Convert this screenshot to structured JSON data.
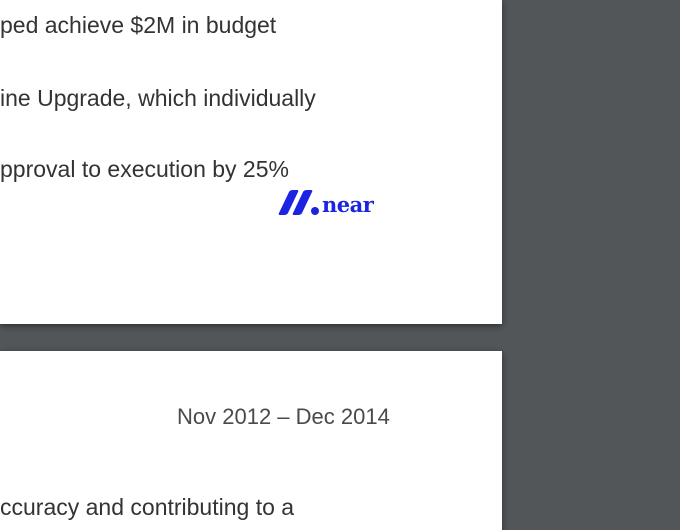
{
  "document": {
    "page1_lines": [
      "ped achieve $2M in budget",
      "ine Upgrade, which individually",
      "pproval to execution by 25%"
    ],
    "logo": {
      "text": "near",
      "icon": "near-logo-icon",
      "color": "#1b24e0"
    },
    "page2": {
      "date_range": "Nov 2012 – Dec 2014",
      "line": "ccuracy and contributing to a"
    }
  },
  "colors": {
    "viewer_background": "#525659",
    "page_background": "#ffffff",
    "text": "#333333"
  }
}
